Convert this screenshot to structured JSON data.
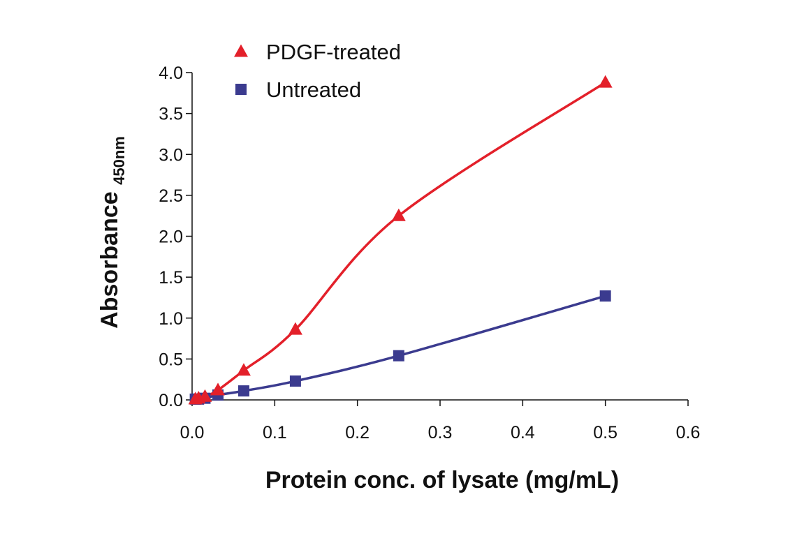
{
  "chart_data": {
    "type": "line",
    "title": "",
    "xlabel": "Protein conc. of lysate (mg/mL)",
    "ylabel": {
      "main": "Absorbance",
      "subscript": "450nm"
    },
    "xlim": [
      0,
      0.6
    ],
    "ylim": [
      0,
      4.0
    ],
    "xticks": [
      0,
      0.1,
      0.2,
      0.3,
      0.4,
      0.5,
      0.6
    ],
    "xtick_labels": [
      "0.0",
      "0.1",
      "0.2",
      "0.3",
      "0.4",
      "0.5",
      "0.6"
    ],
    "yticks": [
      0,
      0.5,
      1.0,
      1.5,
      2.0,
      2.5,
      3.0,
      3.5,
      4.0
    ],
    "ytick_labels": [
      "0.0",
      "0.5",
      "1.0",
      "1.5",
      "2.0",
      "2.5",
      "3.0",
      "3.5",
      "4.0"
    ],
    "grid": false,
    "legend_position": "top-left",
    "series": [
      {
        "name": "PDGF-treated",
        "marker": "triangle",
        "color": "#e3202a",
        "x": [
          0.0039,
          0.0078,
          0.0156,
          0.0313,
          0.0625,
          0.125,
          0.25,
          0.5
        ],
        "y": [
          0.01,
          0.02,
          0.04,
          0.12,
          0.36,
          0.86,
          2.25,
          3.88
        ]
      },
      {
        "name": "Untreated",
        "marker": "square",
        "color": "#3b3b8f",
        "x": [
          0.0039,
          0.0078,
          0.0156,
          0.0313,
          0.0625,
          0.125,
          0.25,
          0.5
        ],
        "y": [
          0.01,
          0.01,
          0.02,
          0.06,
          0.11,
          0.23,
          0.54,
          1.27
        ]
      }
    ]
  }
}
